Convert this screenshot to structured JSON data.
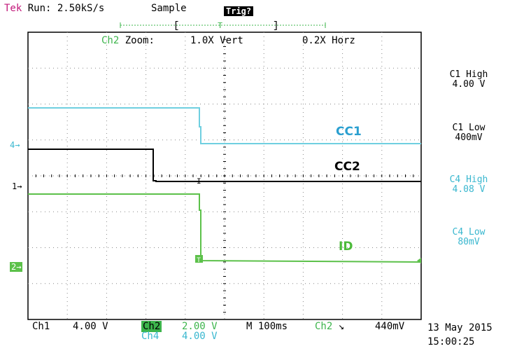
{
  "header": {
    "brand": "Tek",
    "run": "Run: 2.50kS/s",
    "mode": "Sample",
    "trigger_status": "Trig?"
  },
  "zoom": {
    "channel": "Ch2",
    "label": "Zoom:",
    "vert": "1.0X Vert",
    "horz": "0.2X Horz"
  },
  "right_panel": {
    "c1_high_label": "C1 High",
    "c1_high_value": "4.00 V",
    "c1_low_label": "C1 Low",
    "c1_low_value": "400mV",
    "c4_high_label": "C4 High",
    "c4_high_value": "4.08 V",
    "c4_low_label": "C4 Low",
    "c4_low_value": "80mV"
  },
  "signals": {
    "cc1": "CC1",
    "cc2": "CC2",
    "id": "ID"
  },
  "markers": {
    "ch4": "4→",
    "ch1": "1→",
    "ch2": "2→",
    "trigger_t": "T"
  },
  "bottom": {
    "ch1_label": "Ch1",
    "ch1_scale": "4.00 V",
    "ch2_label": "Ch2",
    "ch2_scale": "2.00 V",
    "ch4_label": "Ch4",
    "ch4_scale": "4.00 V",
    "timebase": "M 100ms",
    "trig_channel": "Ch2",
    "trig_slope": "↘",
    "trig_level": "440mV",
    "date": "13 May 2015",
    "time": "15:00:25"
  },
  "colors": {
    "cc1": "#6fcfe0",
    "cc2": "#000000",
    "id": "#5cc14a"
  }
}
